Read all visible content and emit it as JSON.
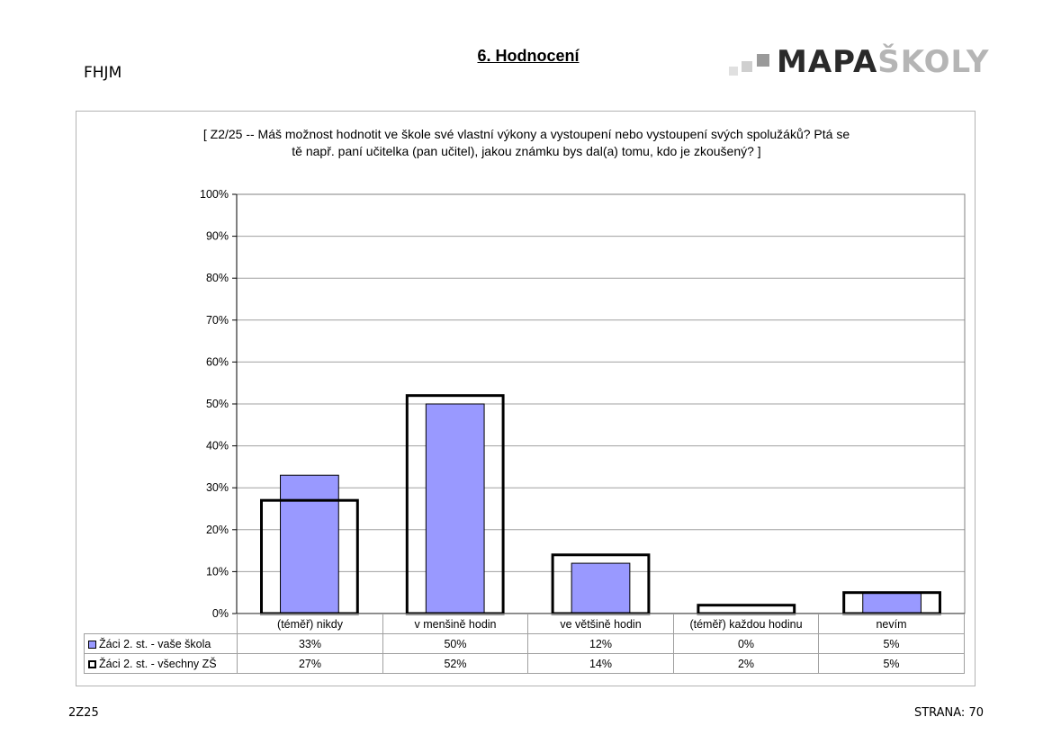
{
  "header": {
    "left_code": "FHJM",
    "title": "6. Hodnocení",
    "logo_text_dark": "MAPA",
    "logo_text_light": "ŠKOLY"
  },
  "footer": {
    "left": "2Z25",
    "right": "STRANA: 70"
  },
  "colors": {
    "series1_fill": "#9999ff",
    "series2_outline": "#000000",
    "gridline": "#a0a0a0"
  },
  "chart_data": {
    "type": "bar",
    "title_line1": "[ Z2/25 -- Máš možnost hodnotit ve škole své vlastní výkony a vystoupení nebo vystoupení svých spolužáků? Ptá se",
    "title_line2": "tě např. paní učitelka (pan učitel), jakou známku bys dal(a) tomu, kdo je zkoušený? ]",
    "categories": [
      "(téměř) nikdy",
      "v menšině hodin",
      "ve většině hodin",
      "(téměř) každou hodinu",
      "nevím"
    ],
    "series": [
      {
        "name": "Žáci 2. st. - vaše škola",
        "values": [
          33,
          50,
          12,
          0,
          5
        ],
        "labels": [
          "33%",
          "50%",
          "12%",
          "0%",
          "5%"
        ]
      },
      {
        "name": "Žáci 2. st. - všechny ZŠ",
        "values": [
          27,
          52,
          14,
          2,
          5
        ],
        "labels": [
          "27%",
          "52%",
          "14%",
          "2%",
          "5%"
        ]
      }
    ],
    "ylim": [
      0,
      100
    ],
    "yticks": [
      "0%",
      "10%",
      "20%",
      "30%",
      "40%",
      "50%",
      "60%",
      "70%",
      "80%",
      "90%",
      "100%"
    ],
    "grid": true,
    "legend": "data-table"
  }
}
